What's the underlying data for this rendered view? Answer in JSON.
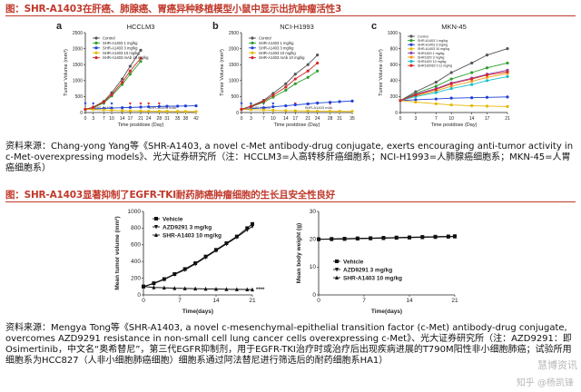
{
  "section1": {
    "title": "图：SHR-A1403在肝癌、肺腺癌、胃癌异种移植模型小鼠中显示出抗肿瘤活性3",
    "source": "资料来源：Chang-yong Yang等《SHR-A1403, a novel c-Met antibody-drug conjugate, exerts encouraging anti-tumor activity in c-Met-overexpressing models》、光大证券研究所（注：HCCLM3=人高转移肝癌细胞系；NCI-H1993=人肺腺癌细胞系；MKN-45=人胃癌细胞系）"
  },
  "section2": {
    "title": "图：SHR-A1403显著抑制了EGFR-TKI耐药肺癌肿瘤细胞的生长且安全性良好",
    "source": "资料来源：Mengya Tong等《SHR-A1403, a novel c-mesenchymal-epithelial transition factor (c-Met) antibody-drug conjugate, overcomes AZD9291 resistance in non-small cell lung cancer cells overexpressing c-Met》、光大证券研究所（注：AZD9291：即Osimertinib，中文名“奥希替尼”，第三代EGFR抑制剂，用于EGFR-TKI治疗时或治疗后出现疾病进展的T790M阳性非小细胞肺癌；试验所用细胞系为HCC827（人非小细胞肺癌细胞）细胞系通过阿法替尼进行筛选后的耐药细胞系HA1）"
  },
  "watermark": "慧博资讯",
  "watermark2": "知乎 @杨凯锋",
  "colors": {
    "title_red": "#c0392b",
    "control": "#555555",
    "s1": "#2ca02c",
    "s2": "#e6b800",
    "s3": "#1f3fd6",
    "s4": "#d62728",
    "s5": "#8e44ad",
    "s6": "#f39c12",
    "s7": "#17becf"
  },
  "chart_data": [
    {
      "panel": "a",
      "type": "line",
      "title": "HCCLM3",
      "xlabel": "Time postdose (Day)",
      "ylabel": "Tumor Volume (mm³)",
      "xticks": [
        0,
        3,
        7,
        10,
        14,
        17,
        21,
        24,
        28,
        31,
        35,
        38,
        42
      ],
      "yticks": [
        0,
        500,
        1000,
        1500,
        2000,
        2500
      ],
      "ylim": [
        0,
        2500
      ],
      "xlim": [
        0,
        42
      ],
      "annotations": [
        "SHR-A1403",
        "SHR-A1403 mAb"
      ],
      "series": [
        {
          "name": "Control",
          "color": "#555555",
          "x": [
            0,
            3,
            7,
            10,
            14,
            17,
            21
          ],
          "y": [
            100,
            170,
            350,
            620,
            1050,
            1450,
            1950
          ]
        },
        {
          "name": "SHR-A1403 1 mg/kg",
          "color": "#2ca02c",
          "x": [
            0,
            3,
            7,
            10,
            14,
            17,
            21
          ],
          "y": [
            100,
            150,
            300,
            520,
            880,
            1200,
            1600
          ]
        },
        {
          "name": "SHR-A1403 3 mg/kg",
          "color": "#1f3fd6",
          "x": [
            0,
            3,
            7,
            10,
            14,
            17,
            21,
            24,
            28,
            31,
            35,
            38,
            42
          ],
          "y": [
            100,
            110,
            130,
            140,
            150,
            160,
            170,
            180,
            190,
            195,
            200,
            205,
            210
          ]
        },
        {
          "name": "SHR-A1403 10 mg/kg",
          "color": "#e6b800",
          "x": [
            0,
            3,
            7,
            10,
            14,
            17,
            21,
            24,
            28,
            31,
            35,
            38,
            42
          ],
          "y": [
            100,
            95,
            80,
            70,
            60,
            55,
            50,
            45,
            40,
            38,
            35,
            33,
            30
          ]
        },
        {
          "name": "SHR-A1403 mAb 10 mg/kg",
          "color": "#d62728",
          "x": [
            0,
            3,
            7,
            10,
            14,
            17,
            21
          ],
          "y": [
            100,
            160,
            330,
            560,
            950,
            1300,
            1700
          ]
        }
      ]
    },
    {
      "panel": "b",
      "type": "line",
      "title": "NCI-H1993",
      "xlabel": "Time postdose (Day)",
      "ylabel": "Tumor Volume (mm³)",
      "xticks": [
        0,
        3,
        7,
        10,
        14,
        17,
        21,
        24,
        28,
        31,
        35
      ],
      "yticks": [
        0,
        500,
        1000,
        1500,
        2000,
        2500
      ],
      "ylim": [
        0,
        2500
      ],
      "xlim": [
        0,
        35
      ],
      "annotations": [
        "SHR-A1403",
        "SHR-A1403 mAb"
      ],
      "series": [
        {
          "name": "Control",
          "color": "#555555",
          "x": [
            0,
            3,
            7,
            10,
            14,
            17,
            21,
            24
          ],
          "y": [
            100,
            200,
            380,
            600,
            900,
            1200,
            1500,
            1800
          ]
        },
        {
          "name": "SHR-A1403 1 mg/kg",
          "color": "#2ca02c",
          "x": [
            0,
            3,
            7,
            10,
            14,
            17,
            21,
            24
          ],
          "y": [
            100,
            180,
            320,
            480,
            700,
            900,
            1100,
            1300
          ]
        },
        {
          "name": "SHR-A1403 3 mg/kg",
          "color": "#1f3fd6",
          "x": [
            0,
            3,
            7,
            10,
            14,
            17,
            21,
            24,
            28,
            31,
            35
          ],
          "y": [
            100,
            120,
            150,
            180,
            210,
            240,
            270,
            300,
            320,
            340,
            360
          ]
        },
        {
          "name": "SHR-A1403 10 mg/kg",
          "color": "#e6b800",
          "x": [
            0,
            3,
            7,
            10,
            14,
            17,
            21,
            24,
            28,
            31,
            35
          ],
          "y": [
            100,
            90,
            80,
            70,
            60,
            55,
            50,
            45,
            40,
            38,
            35
          ]
        },
        {
          "name": "SHR-A1403 mAb 10 mg/kg",
          "color": "#d62728",
          "x": [
            0,
            3,
            7,
            10,
            14,
            17,
            21,
            24
          ],
          "y": [
            100,
            190,
            350,
            540,
            800,
            1050,
            1300,
            1550
          ]
        }
      ]
    },
    {
      "panel": "c",
      "type": "line",
      "title": "MKN-45",
      "xlabel": "Time postdose (Day)",
      "ylabel": "Tumor Volume (mm³)",
      "xticks": [
        0,
        3,
        7,
        10,
        14,
        17,
        21
      ],
      "yticks": [
        0,
        200,
        400,
        600,
        800,
        1000
      ],
      "ylim": [
        0,
        1000
      ],
      "xlim": [
        0,
        21
      ],
      "annotations": [],
      "series": [
        {
          "name": "Control",
          "color": "#555555",
          "x": [
            0,
            3,
            7,
            10,
            14,
            17,
            21
          ],
          "y": [
            150,
            260,
            380,
            500,
            620,
            720,
            800
          ]
        },
        {
          "name": "SHR-A1403 1 mg/kg",
          "color": "#2ca02c",
          "x": [
            0,
            3,
            7,
            10,
            14,
            17,
            21
          ],
          "y": [
            150,
            240,
            330,
            420,
            500,
            560,
            620
          ]
        },
        {
          "name": "SHR-A1403 3 mg/kg",
          "color": "#1f3fd6",
          "x": [
            0,
            3,
            7,
            10,
            14,
            17,
            21
          ],
          "y": [
            150,
            160,
            170,
            180,
            185,
            190,
            195
          ]
        },
        {
          "name": "SHR-A1403 10 mg/kg",
          "color": "#e6b800",
          "x": [
            0,
            3,
            7,
            10,
            14,
            17,
            21
          ],
          "y": [
            150,
            130,
            110,
            95,
            85,
            80,
            75
          ]
        },
        {
          "name": "SHR1820 1 mg/kg",
          "color": "#8e44ad",
          "x": [
            0,
            3,
            7,
            10,
            14,
            17,
            21
          ],
          "y": [
            150,
            230,
            300,
            370,
            430,
            480,
            530
          ]
        },
        {
          "name": "SHR1820 3 mg/kg",
          "color": "#f39c12",
          "x": [
            0,
            3,
            7,
            10,
            14,
            17,
            21
          ],
          "y": [
            150,
            210,
            270,
            330,
            390,
            440,
            490
          ]
        },
        {
          "name": "SHR1820 10 mg/kg",
          "color": "#17becf",
          "x": [
            0,
            3,
            7,
            10,
            14,
            17,
            21
          ],
          "y": [
            150,
            200,
            250,
            300,
            350,
            400,
            450
          ]
        },
        {
          "name": "SHR182062 0.11 mg/kg",
          "color": "#d62728",
          "x": [
            0,
            3,
            7,
            10,
            14,
            17,
            21
          ],
          "y": [
            150,
            220,
            290,
            360,
            420,
            470,
            510
          ]
        }
      ]
    },
    {
      "panel": "d",
      "type": "line",
      "title": "",
      "xlabel": "Time(days)",
      "ylabel": "Mean tumor volume (mm³)",
      "xticks": [
        0,
        7,
        14,
        21
      ],
      "yticks": [
        0,
        200,
        400,
        600,
        800,
        1000
      ],
      "ylim": [
        0,
        1000
      ],
      "xlim": [
        0,
        21
      ],
      "annotations": [
        "****"
      ],
      "series": [
        {
          "name": "Vehicle",
          "color": "#111111",
          "marker": "square",
          "x": [
            0,
            2,
            4,
            6,
            8,
            10,
            12,
            14,
            16,
            18,
            20,
            21
          ],
          "y": [
            100,
            140,
            190,
            250,
            310,
            380,
            460,
            540,
            620,
            700,
            800,
            850
          ]
        },
        {
          "name": "AZD9291 3 mg/kg",
          "color": "#111111",
          "marker": "triangle-down",
          "x": [
            0,
            2,
            4,
            6,
            8,
            10,
            12,
            14,
            16,
            18,
            20,
            21
          ],
          "y": [
            100,
            135,
            185,
            245,
            300,
            370,
            450,
            530,
            610,
            690,
            780,
            820
          ]
        },
        {
          "name": "SHR-A1403 10 mg/kg",
          "color": "#111111",
          "marker": "triangle-up",
          "x": [
            0,
            2,
            4,
            6,
            8,
            10,
            12,
            14,
            16,
            18,
            20,
            21
          ],
          "y": [
            100,
            90,
            85,
            80,
            78,
            75,
            72,
            70,
            68,
            66,
            65,
            64
          ]
        }
      ]
    },
    {
      "panel": "e",
      "type": "line",
      "title": "",
      "xlabel": "Time(days)",
      "ylabel": "Mean body weight (g)",
      "xticks": [
        0,
        7,
        14,
        21
      ],
      "yticks": [
        0,
        10,
        20,
        30
      ],
      "ylim": [
        0,
        30
      ],
      "xlim": [
        0,
        21
      ],
      "annotations": [],
      "series": [
        {
          "name": "Vehicle",
          "color": "#111111",
          "marker": "square",
          "x": [
            0,
            2,
            4,
            6,
            8,
            10,
            12,
            14,
            16,
            18,
            20,
            21
          ],
          "y": [
            20,
            20.1,
            20.2,
            20.3,
            20.4,
            20.5,
            20.6,
            20.7,
            20.8,
            20.9,
            21,
            21
          ]
        },
        {
          "name": "AZD9291 3 mg/kg",
          "color": "#111111",
          "marker": "triangle-down",
          "x": [
            0,
            2,
            4,
            6,
            8,
            10,
            12,
            14,
            16,
            18,
            20,
            21
          ],
          "y": [
            20,
            20.1,
            20.2,
            20.3,
            20.4,
            20.5,
            20.6,
            20.7,
            20.8,
            20.9,
            21,
            21.1
          ]
        },
        {
          "name": "SHR-A1403 10 mg/kg",
          "color": "#111111",
          "marker": "triangle-up",
          "x": [
            0,
            2,
            4,
            6,
            8,
            10,
            12,
            14,
            16,
            18,
            20,
            21
          ],
          "y": [
            20,
            20,
            20.1,
            20.2,
            20.3,
            20.4,
            20.5,
            20.6,
            20.7,
            20.8,
            20.9,
            21
          ]
        }
      ]
    }
  ]
}
